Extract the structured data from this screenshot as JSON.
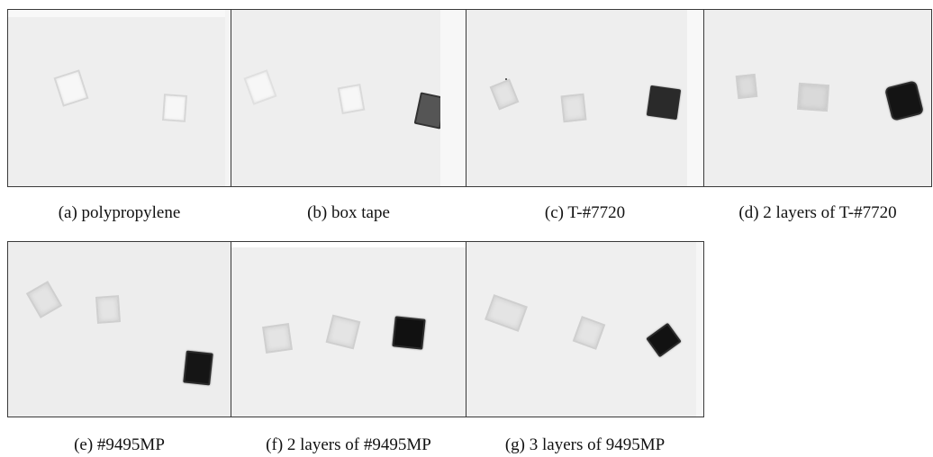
{
  "figure": {
    "panels": [
      {
        "id": "a",
        "caption": "(a) polypropylene"
      },
      {
        "id": "b",
        "caption": "(b) box tape"
      },
      {
        "id": "c",
        "caption": "(c) T-#7720"
      },
      {
        "id": "d",
        "caption": "(d) 2 layers of T-#7720"
      },
      {
        "id": "e",
        "caption": "(e) #9495MP"
      },
      {
        "id": "f",
        "caption": "(f) 2 layers of #9495MP"
      },
      {
        "id": "g",
        "caption": "(g) 3 layers of 9495MP"
      }
    ]
  }
}
